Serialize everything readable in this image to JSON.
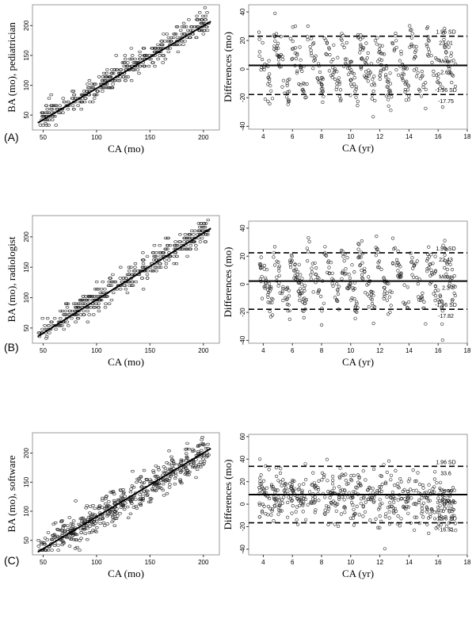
{
  "chart_data": [
    {
      "id": "A1",
      "panel": "(A)",
      "type": "scatter",
      "xlabel": "CA (mo)",
      "ylabel": "BA (mo), pediatrician",
      "xlim": [
        40,
        215
      ],
      "ylim": [
        25,
        235
      ],
      "xticks": [
        50,
        100,
        150,
        200
      ],
      "yticks": [
        50,
        100,
        150,
        200
      ],
      "n_points": 420,
      "seed": 11,
      "noise": 9,
      "quantize": 12,
      "fit_line": {
        "x0": 45,
        "y0": 37,
        "x1": 207,
        "y1": 207
      }
    },
    {
      "id": "A2",
      "panel": "(A)",
      "type": "scatter",
      "xlabel": "CA (yr)",
      "ylabel": "Differences (mo)",
      "xlim": [
        3,
        18
      ],
      "ylim": [
        -42,
        45
      ],
      "xticks": [
        4,
        6,
        8,
        10,
        12,
        14,
        16,
        18
      ],
      "yticks": [
        -40,
        -20,
        0,
        20,
        40
      ],
      "n_points": 420,
      "seed": 21,
      "spread": 11,
      "stripes": true,
      "lines": [
        {
          "label": "1.96 SD",
          "value_label": "23.01",
          "y": 23.01,
          "style": "dashed"
        },
        {
          "label": "Mean",
          "value_label": "2.63",
          "y": 2.63,
          "style": "solid"
        },
        {
          "label": "-1.96 SD",
          "value_label": "-17.75",
          "y": -17.75,
          "style": "dashed"
        }
      ]
    },
    {
      "id": "B1",
      "panel": "(B)",
      "type": "scatter",
      "xlabel": "CA (mo)",
      "ylabel": "BA (mo), radiologist",
      "xlim": [
        40,
        215
      ],
      "ylim": [
        25,
        235
      ],
      "xticks": [
        50,
        100,
        150,
        200
      ],
      "yticks": [
        50,
        100,
        150,
        200
      ],
      "n_points": 420,
      "seed": 31,
      "noise": 9,
      "quantize": 12,
      "fit_line": {
        "x0": 45,
        "y0": 36,
        "x1": 207,
        "y1": 214
      }
    },
    {
      "id": "B2",
      "panel": "(B)",
      "type": "scatter",
      "xlabel": "CA (yr)",
      "ylabel": "Differences (mo)",
      "xlim": [
        3,
        18
      ],
      "ylim": [
        -42,
        45
      ],
      "xticks": [
        4,
        6,
        8,
        10,
        12,
        14,
        16,
        18
      ],
      "yticks": [
        -40,
        -20,
        0,
        20,
        40
      ],
      "n_points": 420,
      "seed": 41,
      "spread": 11,
      "stripes": true,
      "lines": [
        {
          "label": "1.96 SD",
          "value_label": "22.43",
          "y": 22.43,
          "style": "dashed"
        },
        {
          "label": "Mean",
          "value_label": "2.3",
          "y": 2.3,
          "style": "solid"
        },
        {
          "label": "-1.96 SD",
          "value_label": "-17.82",
          "y": -17.82,
          "style": "dashed"
        }
      ]
    },
    {
      "id": "C1",
      "panel": "(C)",
      "type": "scatter",
      "xlabel": "CA (mo)",
      "ylabel": "BA (mo), software",
      "xlim": [
        40,
        215
      ],
      "ylim": [
        25,
        235
      ],
      "xticks": [
        50,
        100,
        150,
        200
      ],
      "yticks": [
        50,
        100,
        150,
        200
      ],
      "n_points": 520,
      "seed": 51,
      "noise": 14,
      "quantize": 0,
      "fit_line": {
        "x0": 45,
        "y0": 30,
        "x1": 207,
        "y1": 208
      }
    },
    {
      "id": "C2",
      "panel": "(C)",
      "type": "scatter",
      "xlabel": "CA (yr)",
      "ylabel": "Differences (mo)",
      "xlim": [
        3,
        18
      ],
      "ylim": [
        -45,
        62
      ],
      "xticks": [
        4,
        6,
        8,
        10,
        12,
        14,
        16,
        18
      ],
      "yticks": [
        -40,
        -20,
        0,
        20,
        40,
        60
      ],
      "n_points": 520,
      "seed": 61,
      "spread": 12,
      "stripes": false,
      "lines": [
        {
          "label": "1.96 SD",
          "value_label": "33.6",
          "y": 33.6,
          "style": "dashed"
        },
        {
          "label": "Mean",
          "value_label": "8.54",
          "y": 8.54,
          "style": "solid"
        },
        {
          "label": "-1.96 SD",
          "value_label": "-16.51",
          "y": -16.51,
          "style": "dashed"
        }
      ]
    }
  ]
}
